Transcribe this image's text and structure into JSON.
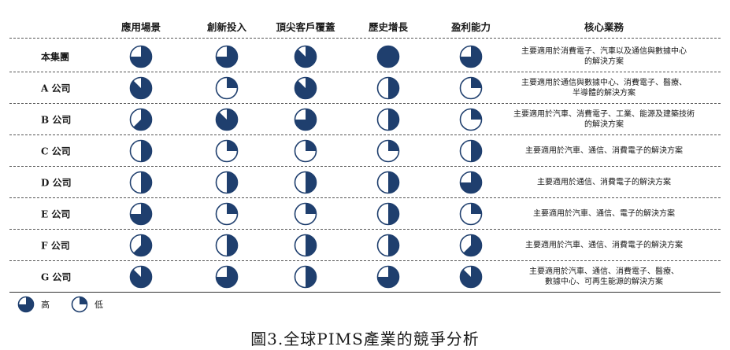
{
  "columns": [
    "應用場景",
    "創新投入",
    "頂尖客戶覆蓋",
    "歷史增長",
    "盈利能力",
    "核心業務"
  ],
  "rows": [
    {
      "label": "本集團",
      "scores": [
        0.75,
        0.75,
        0.875,
        1.0,
        0.75
      ],
      "business": [
        "主要適用於消費電子、汽車以及通信與數據中心",
        "的解決方案"
      ]
    },
    {
      "label": "A 公司",
      "scores": [
        0.875,
        0.25,
        0.875,
        0.5,
        0.25
      ],
      "business": [
        "主要適用於通信與數據中心、消費電子、醫療、",
        "半導體的解決方案"
      ]
    },
    {
      "label": "B 公司",
      "scores": [
        0.625,
        0.875,
        0.75,
        0.5,
        0.25
      ],
      "business": [
        "主要適用於汽車、消費電子、工業、能源及建築技術",
        "的解決方案"
      ]
    },
    {
      "label": "C 公司",
      "scores": [
        0.5,
        0.25,
        0.25,
        0.25,
        0.5
      ],
      "business": [
        "主要適用於汽車、通信、消費電子的解決方案"
      ]
    },
    {
      "label": "D 公司",
      "scores": [
        0.5,
        0.5,
        0.5,
        0.5,
        0.75
      ],
      "business": [
        "主要適用於通信、消費電子的解決方案"
      ]
    },
    {
      "label": "E 公司",
      "scores": [
        0.75,
        0.25,
        0.25,
        0.5,
        0.25
      ],
      "business": [
        "主要適用於汽車、通信、電子的解決方案"
      ]
    },
    {
      "label": "F 公司",
      "scores": [
        0.625,
        0.5,
        0.5,
        0.5,
        0.625
      ],
      "business": [
        "主要適用於汽車、通信、消費電子的解決方案"
      ]
    },
    {
      "label": "G 公司",
      "scores": [
        0.875,
        0.75,
        0.5,
        0.75,
        0.875
      ],
      "business": [
        "主要適用於汽車、通信、消費電子、醫療、",
        "數據中心、可再生能源的解決方案"
      ]
    }
  ],
  "legend": {
    "high": {
      "label": "高",
      "score": 0.75
    },
    "low": {
      "label": "低",
      "score": 0.25
    }
  },
  "caption": "圖3.全球PIMS產業的競爭分析",
  "colors": {
    "fill": "#1f3f6e",
    "stroke": "#1f3f6e",
    "empty": "#ffffff"
  }
}
